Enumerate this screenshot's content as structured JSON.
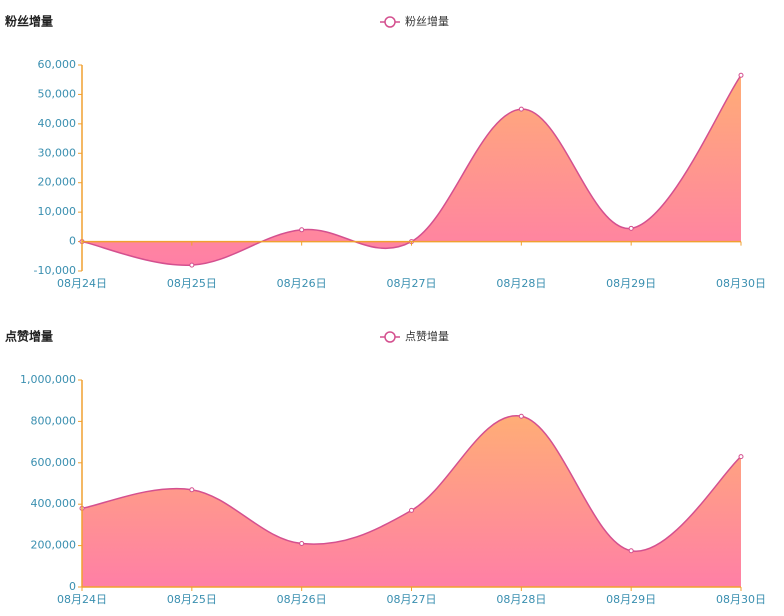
{
  "chart_data": [
    {
      "type": "area",
      "title": "粉丝增量",
      "categories": [
        "08月24日",
        "08月25日",
        "08月26日",
        "08月27日",
        "08月28日",
        "08月29日",
        "08月30日"
      ],
      "series": [
        {
          "name": "粉丝增量",
          "color": "#d4508f",
          "values": [
            0,
            -8000,
            4000,
            0,
            45000,
            4500,
            56500
          ]
        }
      ],
      "area_colors": [
        "#ffad76",
        "#ff7fa6"
      ],
      "axis_color": "#f0a030",
      "label_color": "#3a8fb0",
      "ylim": [
        -10000,
        60000
      ],
      "yticks": [
        {
          "value": -10000,
          "label": "-10,000"
        },
        0,
        {
          "value": 10000,
          "label": "10,000"
        },
        {
          "value": 20000,
          "label": "20,000"
        },
        {
          "value": 30000,
          "label": "30,000"
        },
        {
          "value": 40000,
          "label": "40,000"
        },
        {
          "value": 50000,
          "label": "50,000"
        },
        {
          "value": 60000,
          "label": "60,000"
        }
      ],
      "smooth": true,
      "grid": false
    },
    {
      "type": "area",
      "title": "点赞增量",
      "categories": [
        "08月24日",
        "08月25日",
        "08月26日",
        "08月27日",
        "08月28日",
        "08月29日",
        "08月30日"
      ],
      "series": [
        {
          "name": "点赞增量",
          "color": "#d4508f",
          "values": [
            380000,
            470000,
            210000,
            370000,
            825000,
            175000,
            630000
          ]
        }
      ],
      "area_colors": [
        "#ffad76",
        "#ff7fa6"
      ],
      "axis_color": "#f0a030",
      "label_color": "#3a8fb0",
      "ylim": [
        0,
        1000000
      ],
      "yticks": [
        0,
        {
          "value": 200000,
          "label": "200,000"
        },
        {
          "value": 400000,
          "label": "400,000"
        },
        {
          "value": 600000,
          "label": "600,000"
        },
        {
          "value": 800000,
          "label": "800,000"
        },
        {
          "value": 1000000,
          "label": "1,000,000"
        }
      ],
      "smooth": true,
      "grid": false
    }
  ]
}
